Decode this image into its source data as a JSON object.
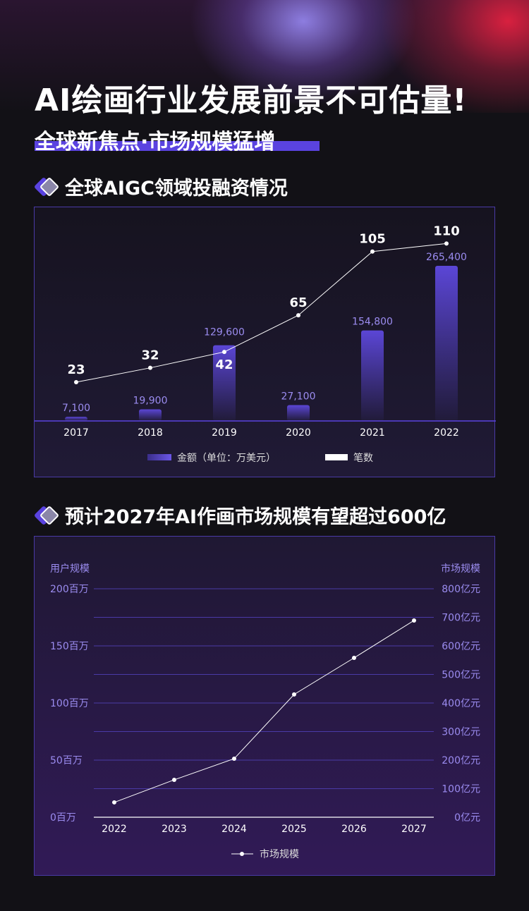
{
  "header": {
    "title": "AI绘画行业发展前景不可估量!",
    "subtitle": "全球新焦点·市场规模猛增"
  },
  "colors": {
    "accent": "#5a43e0",
    "bar": "#5b46d6",
    "label": "#9b8cf0",
    "grid": "#4a3aa6"
  },
  "chart_data": [
    {
      "type": "bar",
      "title": "全球AIGC领域投融资情况",
      "categories": [
        "2017",
        "2018",
        "2019",
        "2020",
        "2021",
        "2022"
      ],
      "series": [
        {
          "name": "金额（单位：万美元）",
          "type": "bar",
          "values": [
            7100,
            19900,
            129600,
            27100,
            154800,
            265400
          ],
          "labels": [
            "7,100",
            "19,900",
            "129,600",
            "27,100",
            "154,800",
            "265,400"
          ]
        },
        {
          "name": "笔数",
          "type": "line",
          "values": [
            23,
            32,
            42,
            65,
            105,
            110
          ]
        }
      ]
    },
    {
      "type": "line",
      "title": "预计2027年AI作画市场规模有望超过600亿",
      "categories": [
        "2022",
        "2023",
        "2024",
        "2025",
        "2026",
        "2027"
      ],
      "ylabel_left": "用户规模",
      "ylabel_right": "市场规模",
      "yticks_left": [
        "0百万",
        "50百万",
        "100百万",
        "150百万",
        "200百万"
      ],
      "yticks_right": [
        "0亿元",
        "100亿元",
        "200亿元",
        "300亿元",
        "400亿元",
        "500亿元",
        "600亿元",
        "700亿元",
        "800亿元"
      ],
      "ylim_right": [
        0,
        800
      ],
      "ylim_left": [
        0,
        200
      ],
      "grid": true,
      "legend": "bottom",
      "series": [
        {
          "name": "市场规模",
          "values": [
            52,
            131,
            205,
            430,
            558,
            689
          ]
        }
      ]
    }
  ]
}
